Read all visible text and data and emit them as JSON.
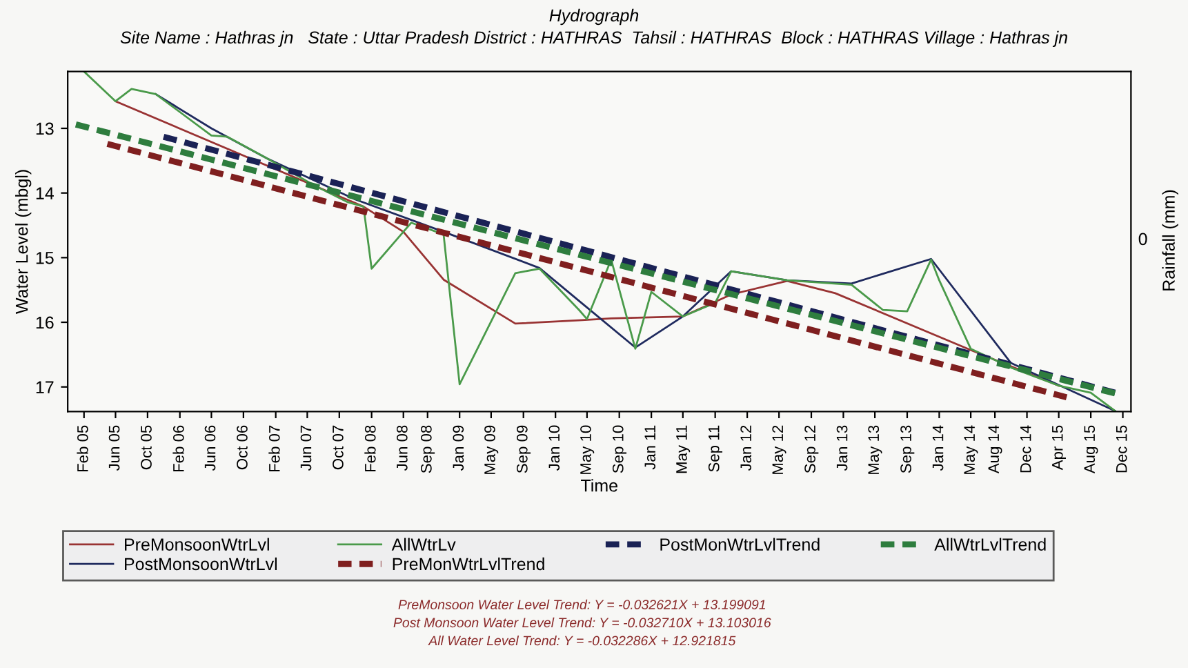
{
  "chart_data": {
    "type": "line",
    "title": "Hydrograph",
    "subtitle": "Site Name : Hathras jn   State : Uttar Pradesh District : HATHRAS  Tahsil : HATHRAS  Block : HATHRAS Village : Hathras jn",
    "xlabel": "Time",
    "ylabel": "Water Level (mbgl)",
    "y2label": "Rainfall (mm)",
    "xlim": [
      "2004-12",
      "2016-01"
    ],
    "ylim": [
      17.38,
      12.12
    ],
    "yticks": [
      13,
      14,
      15,
      16,
      17
    ],
    "xticks": [
      {
        "value": "2005-02",
        "label": "Feb 05"
      },
      {
        "value": "2005-06",
        "label": "Jun 05"
      },
      {
        "value": "2005-10",
        "label": "Oct 05"
      },
      {
        "value": "2006-02",
        "label": "Feb 06"
      },
      {
        "value": "2006-06",
        "label": "Jun 06"
      },
      {
        "value": "2006-10",
        "label": "Oct 06"
      },
      {
        "value": "2007-02",
        "label": "Feb 07"
      },
      {
        "value": "2007-06",
        "label": "Jun 07"
      },
      {
        "value": "2007-10",
        "label": "Oct 07"
      },
      {
        "value": "2008-02",
        "label": "Feb 08"
      },
      {
        "value": "2008-06",
        "label": "Jun 08"
      },
      {
        "value": "2008-09",
        "label": "Sep 08"
      },
      {
        "value": "2009-01",
        "label": "Jan 09"
      },
      {
        "value": "2009-05",
        "label": "May 09"
      },
      {
        "value": "2009-09",
        "label": "Sep 09"
      },
      {
        "value": "2010-01",
        "label": "Jan 10"
      },
      {
        "value": "2010-05",
        "label": "May 10"
      },
      {
        "value": "2010-09",
        "label": "Sep 10"
      },
      {
        "value": "2011-01",
        "label": "Jan 11"
      },
      {
        "value": "2011-05",
        "label": "May 11"
      },
      {
        "value": "2011-09",
        "label": "Sep 11"
      },
      {
        "value": "2012-01",
        "label": "Jan 12"
      },
      {
        "value": "2012-05",
        "label": "May 12"
      },
      {
        "value": "2012-09",
        "label": "Sep 12"
      },
      {
        "value": "2013-01",
        "label": "Jan 13"
      },
      {
        "value": "2013-05",
        "label": "May 13"
      },
      {
        "value": "2013-09",
        "label": "Sep 13"
      },
      {
        "value": "2014-01",
        "label": "Jan 14"
      },
      {
        "value": "2014-05",
        "label": "May 14"
      },
      {
        "value": "2014-08",
        "label": "Aug 14"
      },
      {
        "value": "2014-12",
        "label": "Dec 14"
      },
      {
        "value": "2015-04",
        "label": "Apr 15"
      },
      {
        "value": "2015-08",
        "label": "Aug 15"
      },
      {
        "value": "2015-12",
        "label": "Dec 15"
      }
    ],
    "grid": false,
    "legend": "bottom",
    "marker": "none",
    "series": [
      {
        "name": "PreMonsoonWtrLvl",
        "color": "#993333",
        "line_style": "solid",
        "x": [
          "2005-06",
          "2008-01",
          "2008-06",
          "2008-11",
          "2009-08",
          "2010-04",
          "2010-08",
          "2011-05",
          "2011-11",
          "2012-06",
          "2012-12",
          "2014-05",
          "2015-04"
        ],
        "values": [
          12.58,
          14.21,
          14.6,
          15.34,
          16.02,
          15.97,
          15.94,
          15.91,
          15.57,
          15.36,
          15.55,
          16.43,
          16.98
        ]
      },
      {
        "name": "PostMonsoonWtrLvl",
        "color": "#1f2a5e",
        "line_style": "solid",
        "x": [
          "2005-11",
          "2006-06",
          "2007-01",
          "2007-12",
          "2008-11",
          "2009-11",
          "2010-04",
          "2010-11",
          "2011-05",
          "2011-11",
          "2012-06",
          "2013-02",
          "2013-12",
          "2014-10",
          "2015-11"
        ],
        "values": [
          12.47,
          13.0,
          13.47,
          14.1,
          14.6,
          15.16,
          15.67,
          16.39,
          15.91,
          15.21,
          15.35,
          15.4,
          15.02,
          16.63,
          17.37
        ]
      },
      {
        "name": "AllWtrLv",
        "color": "#4a9a4a",
        "line_style": "solid",
        "x": [
          "2005-02",
          "2005-06",
          "2005-08",
          "2005-11",
          "2006-06",
          "2006-08",
          "2007-01",
          "2007-07",
          "2007-11",
          "2008-01",
          "2008-02",
          "2008-06",
          "2008-07",
          "2008-11",
          "2009-01",
          "2009-08",
          "2009-11",
          "2010-04",
          "2010-05",
          "2010-08",
          "2010-11",
          "2011-01",
          "2011-05",
          "2011-09",
          "2011-11",
          "2012-06",
          "2013-02",
          "2013-06",
          "2013-09",
          "2013-12",
          "2014-01",
          "2014-05",
          "2014-10",
          "2015-04",
          "2015-08",
          "2015-11"
        ],
        "values": [
          12.12,
          12.58,
          12.39,
          12.47,
          13.11,
          13.13,
          13.47,
          13.89,
          14.14,
          14.21,
          15.17,
          14.6,
          14.46,
          14.64,
          16.96,
          15.24,
          15.17,
          15.81,
          15.95,
          15.03,
          16.41,
          15.53,
          15.91,
          15.7,
          15.21,
          15.35,
          15.42,
          15.81,
          15.83,
          15.03,
          15.35,
          16.41,
          16.7,
          16.98,
          17.09,
          17.37
        ]
      },
      {
        "name": "PreMonWtrLvlTrend",
        "color": "#7f1f1f",
        "line_style": "dashed",
        "x": [
          "2005-05",
          "2015-05"
        ],
        "values": [
          13.24,
          17.16
        ]
      },
      {
        "name": "PostMonWtrLvlTrend",
        "color": "#1a2255",
        "line_style": "dashed",
        "x": [
          "2005-12",
          "2015-11"
        ],
        "values": [
          13.13,
          17.09
        ]
      },
      {
        "name": "AllWtrLvlTrend",
        "color": "#2e7d3e",
        "line_style": "dashed",
        "x": [
          "2005-01",
          "2015-11"
        ],
        "values": [
          12.94,
          17.1
        ]
      }
    ],
    "annotations": [
      "PreMonsoon Water Level Trend: Y = -0.032621X + 13.199091",
      "Post Monsoon Water Level Trend: Y = -0.032710X + 13.103016",
      "All Water Level Trend: Y = -0.032286X + 12.921815",
      "0"
    ]
  }
}
